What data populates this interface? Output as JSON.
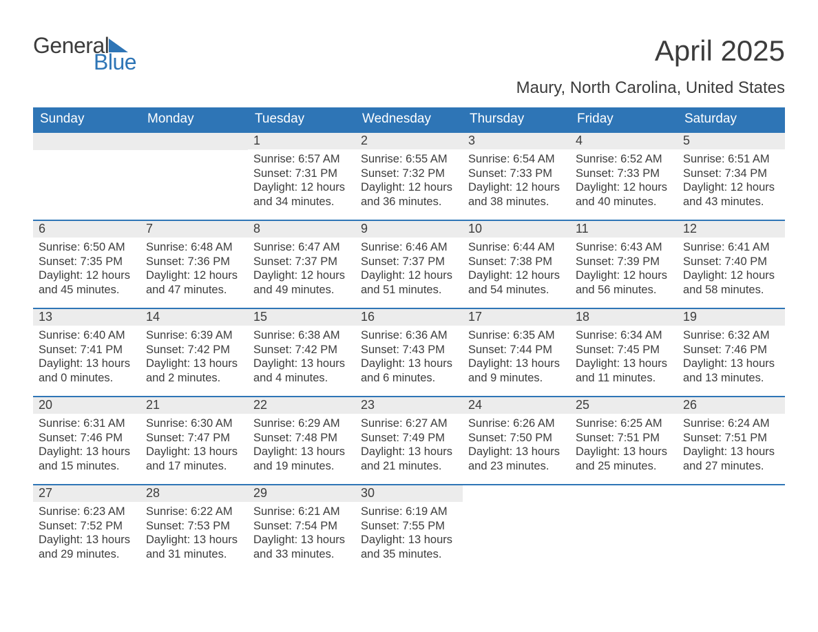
{
  "brand": {
    "general": "General",
    "blue": "Blue"
  },
  "title": "April 2025",
  "location": "Maury, North Carolina, United States",
  "colors": {
    "header_bg": "#2e75b6",
    "header_text": "#ffffff",
    "daynum_bg": "#ececec",
    "text": "#3c3c3c",
    "logo_blue": "#2e75b6"
  },
  "font": {
    "family": "Segoe UI, Arial, sans-serif",
    "title_size": 42,
    "location_size": 24,
    "header_size": 19,
    "body_size": 16.5
  },
  "daynames": [
    "Sunday",
    "Monday",
    "Tuesday",
    "Wednesday",
    "Thursday",
    "Friday",
    "Saturday"
  ],
  "weeks": [
    [
      null,
      null,
      {
        "n": "1",
        "sr": "Sunrise: 6:57 AM",
        "ss": "Sunset: 7:31 PM",
        "dl1": "Daylight: 12 hours",
        "dl2": "and 34 minutes."
      },
      {
        "n": "2",
        "sr": "Sunrise: 6:55 AM",
        "ss": "Sunset: 7:32 PM",
        "dl1": "Daylight: 12 hours",
        "dl2": "and 36 minutes."
      },
      {
        "n": "3",
        "sr": "Sunrise: 6:54 AM",
        "ss": "Sunset: 7:33 PM",
        "dl1": "Daylight: 12 hours",
        "dl2": "and 38 minutes."
      },
      {
        "n": "4",
        "sr": "Sunrise: 6:52 AM",
        "ss": "Sunset: 7:33 PM",
        "dl1": "Daylight: 12 hours",
        "dl2": "and 40 minutes."
      },
      {
        "n": "5",
        "sr": "Sunrise: 6:51 AM",
        "ss": "Sunset: 7:34 PM",
        "dl1": "Daylight: 12 hours",
        "dl2": "and 43 minutes."
      }
    ],
    [
      {
        "n": "6",
        "sr": "Sunrise: 6:50 AM",
        "ss": "Sunset: 7:35 PM",
        "dl1": "Daylight: 12 hours",
        "dl2": "and 45 minutes."
      },
      {
        "n": "7",
        "sr": "Sunrise: 6:48 AM",
        "ss": "Sunset: 7:36 PM",
        "dl1": "Daylight: 12 hours",
        "dl2": "and 47 minutes."
      },
      {
        "n": "8",
        "sr": "Sunrise: 6:47 AM",
        "ss": "Sunset: 7:37 PM",
        "dl1": "Daylight: 12 hours",
        "dl2": "and 49 minutes."
      },
      {
        "n": "9",
        "sr": "Sunrise: 6:46 AM",
        "ss": "Sunset: 7:37 PM",
        "dl1": "Daylight: 12 hours",
        "dl2": "and 51 minutes."
      },
      {
        "n": "10",
        "sr": "Sunrise: 6:44 AM",
        "ss": "Sunset: 7:38 PM",
        "dl1": "Daylight: 12 hours",
        "dl2": "and 54 minutes."
      },
      {
        "n": "11",
        "sr": "Sunrise: 6:43 AM",
        "ss": "Sunset: 7:39 PM",
        "dl1": "Daylight: 12 hours",
        "dl2": "and 56 minutes."
      },
      {
        "n": "12",
        "sr": "Sunrise: 6:41 AM",
        "ss": "Sunset: 7:40 PM",
        "dl1": "Daylight: 12 hours",
        "dl2": "and 58 minutes."
      }
    ],
    [
      {
        "n": "13",
        "sr": "Sunrise: 6:40 AM",
        "ss": "Sunset: 7:41 PM",
        "dl1": "Daylight: 13 hours",
        "dl2": "and 0 minutes."
      },
      {
        "n": "14",
        "sr": "Sunrise: 6:39 AM",
        "ss": "Sunset: 7:42 PM",
        "dl1": "Daylight: 13 hours",
        "dl2": "and 2 minutes."
      },
      {
        "n": "15",
        "sr": "Sunrise: 6:38 AM",
        "ss": "Sunset: 7:42 PM",
        "dl1": "Daylight: 13 hours",
        "dl2": "and 4 minutes."
      },
      {
        "n": "16",
        "sr": "Sunrise: 6:36 AM",
        "ss": "Sunset: 7:43 PM",
        "dl1": "Daylight: 13 hours",
        "dl2": "and 6 minutes."
      },
      {
        "n": "17",
        "sr": "Sunrise: 6:35 AM",
        "ss": "Sunset: 7:44 PM",
        "dl1": "Daylight: 13 hours",
        "dl2": "and 9 minutes."
      },
      {
        "n": "18",
        "sr": "Sunrise: 6:34 AM",
        "ss": "Sunset: 7:45 PM",
        "dl1": "Daylight: 13 hours",
        "dl2": "and 11 minutes."
      },
      {
        "n": "19",
        "sr": "Sunrise: 6:32 AM",
        "ss": "Sunset: 7:46 PM",
        "dl1": "Daylight: 13 hours",
        "dl2": "and 13 minutes."
      }
    ],
    [
      {
        "n": "20",
        "sr": "Sunrise: 6:31 AM",
        "ss": "Sunset: 7:46 PM",
        "dl1": "Daylight: 13 hours",
        "dl2": "and 15 minutes."
      },
      {
        "n": "21",
        "sr": "Sunrise: 6:30 AM",
        "ss": "Sunset: 7:47 PM",
        "dl1": "Daylight: 13 hours",
        "dl2": "and 17 minutes."
      },
      {
        "n": "22",
        "sr": "Sunrise: 6:29 AM",
        "ss": "Sunset: 7:48 PM",
        "dl1": "Daylight: 13 hours",
        "dl2": "and 19 minutes."
      },
      {
        "n": "23",
        "sr": "Sunrise: 6:27 AM",
        "ss": "Sunset: 7:49 PM",
        "dl1": "Daylight: 13 hours",
        "dl2": "and 21 minutes."
      },
      {
        "n": "24",
        "sr": "Sunrise: 6:26 AM",
        "ss": "Sunset: 7:50 PM",
        "dl1": "Daylight: 13 hours",
        "dl2": "and 23 minutes."
      },
      {
        "n": "25",
        "sr": "Sunrise: 6:25 AM",
        "ss": "Sunset: 7:51 PM",
        "dl1": "Daylight: 13 hours",
        "dl2": "and 25 minutes."
      },
      {
        "n": "26",
        "sr": "Sunrise: 6:24 AM",
        "ss": "Sunset: 7:51 PM",
        "dl1": "Daylight: 13 hours",
        "dl2": "and 27 minutes."
      }
    ],
    [
      {
        "n": "27",
        "sr": "Sunrise: 6:23 AM",
        "ss": "Sunset: 7:52 PM",
        "dl1": "Daylight: 13 hours",
        "dl2": "and 29 minutes."
      },
      {
        "n": "28",
        "sr": "Sunrise: 6:22 AM",
        "ss": "Sunset: 7:53 PM",
        "dl1": "Daylight: 13 hours",
        "dl2": "and 31 minutes."
      },
      {
        "n": "29",
        "sr": "Sunrise: 6:21 AM",
        "ss": "Sunset: 7:54 PM",
        "dl1": "Daylight: 13 hours",
        "dl2": "and 33 minutes."
      },
      {
        "n": "30",
        "sr": "Sunrise: 6:19 AM",
        "ss": "Sunset: 7:55 PM",
        "dl1": "Daylight: 13 hours",
        "dl2": "and 35 minutes."
      },
      null,
      null,
      null
    ]
  ]
}
